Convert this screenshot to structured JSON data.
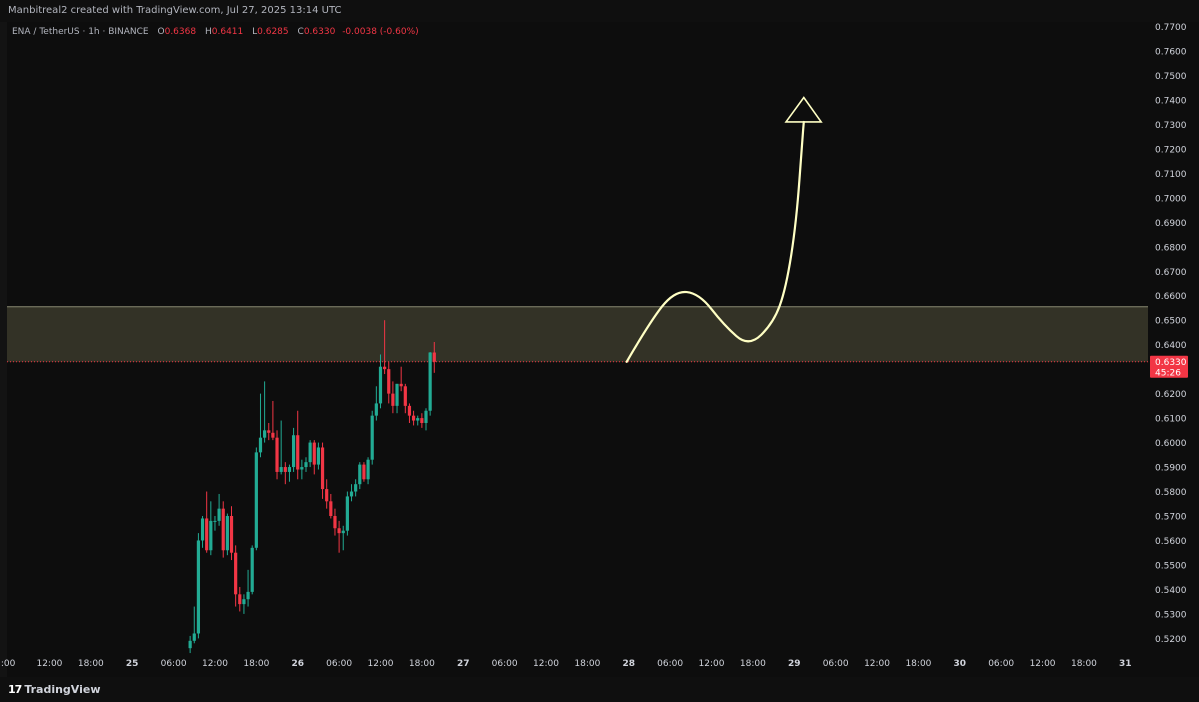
{
  "header": {
    "credit": "Manbitreal2 created with TradingView.com, Jul 27, 2025 13:14 UTC"
  },
  "legend": {
    "symbol": "ENA / TetherUS · 1h · BINANCE",
    "o_label": "O",
    "o_value": "0.6368",
    "h_label": "H",
    "h_value": "0.6411",
    "l_label": "L",
    "l_value": "0.6285",
    "c_label": "C",
    "c_value": "0.6330",
    "change": "-0.0038 (-0.60%)"
  },
  "footer": {
    "brand": "TradingView",
    "brand_icon": "tradingview-logo-icon"
  },
  "colors": {
    "up": "#22ab94",
    "down": "#f23645",
    "zone_fill": "#3b3a2c",
    "zone_line": "#8a8a72",
    "arrow": "#ffffc4",
    "background": "#0d0d0d"
  },
  "chart_data": {
    "type": "candlestick",
    "symbol": "ENA / TetherUS",
    "interval": "1h",
    "exchange": "BINANCE",
    "ylim": [
      0.513,
      0.781
    ],
    "y_ticks": [
      "0.7700",
      "0.7600",
      "0.7500",
      "0.7400",
      "0.7300",
      "0.7200",
      "0.7100",
      "0.7000",
      "0.6900",
      "0.6800",
      "0.6700",
      "0.6600",
      "0.6500",
      "0.6400",
      "0.6300",
      "0.6200",
      "0.6100",
      "0.6000",
      "0.5900",
      "0.5800",
      "0.5700",
      "0.5600",
      "0.5500",
      "0.5400",
      "0.5300",
      "0.5200"
    ],
    "x_ticks": [
      {
        "label": ":00",
        "bar": -1
      },
      {
        "label": "12:00",
        "bar": 9
      },
      {
        "label": "18:00",
        "bar": 19
      },
      {
        "label": "25",
        "bar": 29
      },
      {
        "label": "06:00",
        "bar": 39
      },
      {
        "label": "12:00",
        "bar": 49
      },
      {
        "label": "18:00",
        "bar": 59
      },
      {
        "label": "26",
        "bar": 69
      },
      {
        "label": "06:00",
        "bar": 79
      },
      {
        "label": "12:00",
        "bar": 89
      },
      {
        "label": "18:00",
        "bar": 99
      },
      {
        "label": "27",
        "bar": 109
      },
      {
        "label": "06:00",
        "bar": 119
      },
      {
        "label": "12:00",
        "bar": 129
      },
      {
        "label": "18:00",
        "bar": 139
      },
      {
        "label": "28",
        "bar": 149
      },
      {
        "label": "06:00",
        "bar": 159
      },
      {
        "label": "12:00",
        "bar": 169
      },
      {
        "label": "18:00",
        "bar": 179
      },
      {
        "label": "29",
        "bar": 189
      },
      {
        "label": "06:00",
        "bar": 199
      },
      {
        "label": "12:00",
        "bar": 209
      },
      {
        "label": "18:00",
        "bar": 219
      },
      {
        "label": "30",
        "bar": 229
      },
      {
        "label": "06:00",
        "bar": 239
      },
      {
        "label": "12:00",
        "bar": 249
      },
      {
        "label": "18:00",
        "bar": 259
      },
      {
        "label": "31",
        "bar": 269
      }
    ],
    "candles_start_bar": 43,
    "candles": [
      [
        0.516,
        0.521,
        0.514,
        0.519
      ],
      [
        0.519,
        0.533,
        0.518,
        0.522
      ],
      [
        0.522,
        0.563,
        0.52,
        0.56
      ],
      [
        0.56,
        0.57,
        0.557,
        0.569
      ],
      [
        0.569,
        0.58,
        0.555,
        0.556
      ],
      [
        0.556,
        0.576,
        0.554,
        0.568
      ],
      [
        0.568,
        0.57,
        0.564,
        0.568
      ],
      [
        0.568,
        0.579,
        0.566,
        0.573
      ],
      [
        0.573,
        0.576,
        0.553,
        0.556
      ],
      [
        0.556,
        0.571,
        0.554,
        0.57
      ],
      [
        0.57,
        0.574,
        0.552,
        0.555
      ],
      [
        0.555,
        0.558,
        0.533,
        0.538
      ],
      [
        0.538,
        0.541,
        0.531,
        0.534
      ],
      [
        0.534,
        0.538,
        0.53,
        0.536
      ],
      [
        0.536,
        0.548,
        0.533,
        0.539
      ],
      [
        0.539,
        0.558,
        0.538,
        0.557
      ],
      [
        0.557,
        0.598,
        0.556,
        0.596
      ],
      [
        0.596,
        0.62,
        0.594,
        0.602
      ],
      [
        0.602,
        0.625,
        0.6,
        0.605
      ],
      [
        0.605,
        0.608,
        0.601,
        0.604
      ],
      [
        0.604,
        0.617,
        0.601,
        0.602
      ],
      [
        0.602,
        0.605,
        0.585,
        0.588
      ],
      [
        0.588,
        0.609,
        0.587,
        0.59
      ],
      [
        0.59,
        0.592,
        0.583,
        0.588
      ],
      [
        0.588,
        0.591,
        0.584,
        0.59
      ],
      [
        0.59,
        0.606,
        0.588,
        0.603
      ],
      [
        0.603,
        0.613,
        0.585,
        0.589
      ],
      [
        0.589,
        0.593,
        0.585,
        0.59
      ],
      [
        0.59,
        0.594,
        0.588,
        0.592
      ],
      [
        0.592,
        0.601,
        0.59,
        0.6
      ],
      [
        0.6,
        0.601,
        0.587,
        0.591
      ],
      [
        0.591,
        0.6,
        0.589,
        0.598
      ],
      [
        0.598,
        0.6,
        0.577,
        0.581
      ],
      [
        0.581,
        0.585,
        0.573,
        0.576
      ],
      [
        0.576,
        0.579,
        0.569,
        0.57
      ],
      [
        0.57,
        0.573,
        0.562,
        0.565
      ],
      [
        0.565,
        0.568,
        0.555,
        0.563
      ],
      [
        0.563,
        0.566,
        0.556,
        0.564
      ],
      [
        0.564,
        0.58,
        0.562,
        0.578
      ],
      [
        0.578,
        0.583,
        0.576,
        0.58
      ],
      [
        0.58,
        0.585,
        0.578,
        0.583
      ],
      [
        0.583,
        0.592,
        0.581,
        0.591
      ],
      [
        0.591,
        0.592,
        0.584,
        0.585
      ],
      [
        0.585,
        0.594,
        0.583,
        0.593
      ],
      [
        0.593,
        0.613,
        0.591,
        0.611
      ],
      [
        0.611,
        0.623,
        0.609,
        0.616
      ],
      [
        0.616,
        0.636,
        0.614,
        0.631
      ],
      [
        0.631,
        0.65,
        0.628,
        0.63
      ],
      [
        0.63,
        0.633,
        0.616,
        0.62
      ],
      [
        0.62,
        0.625,
        0.612,
        0.615
      ],
      [
        0.615,
        0.624,
        0.612,
        0.624
      ],
      [
        0.624,
        0.631,
        0.621,
        0.623
      ],
      [
        0.623,
        0.624,
        0.612,
        0.615
      ],
      [
        0.615,
        0.616,
        0.608,
        0.611
      ],
      [
        0.611,
        0.613,
        0.607,
        0.609
      ],
      [
        0.609,
        0.611,
        0.607,
        0.61
      ],
      [
        0.61,
        0.612,
        0.606,
        0.608
      ],
      [
        0.608,
        0.614,
        0.605,
        0.613
      ],
      [
        0.613,
        0.637,
        0.611,
        0.6368
      ],
      [
        0.6368,
        0.6411,
        0.6285,
        0.633
      ]
    ],
    "zone": {
      "top": 0.6555,
      "bottom": 0.633
    },
    "last_price": {
      "value": "0.6330",
      "countdown": "45:26"
    },
    "projection_path": [
      [
        148.5,
        0.633
      ],
      [
        154,
        0.649
      ],
      [
        160,
        0.662
      ],
      [
        166,
        0.661
      ],
      [
        172,
        0.648
      ],
      [
        178,
        0.639
      ],
      [
        184,
        0.649
      ],
      [
        187,
        0.663
      ],
      [
        189.5,
        0.69
      ],
      [
        191,
        0.725
      ],
      [
        191.3,
        0.731
      ]
    ],
    "projection_arrowhead": [
      [
        187,
        0.731
      ],
      [
        195.5,
        0.731
      ],
      [
        191.3,
        0.741
      ]
    ]
  }
}
